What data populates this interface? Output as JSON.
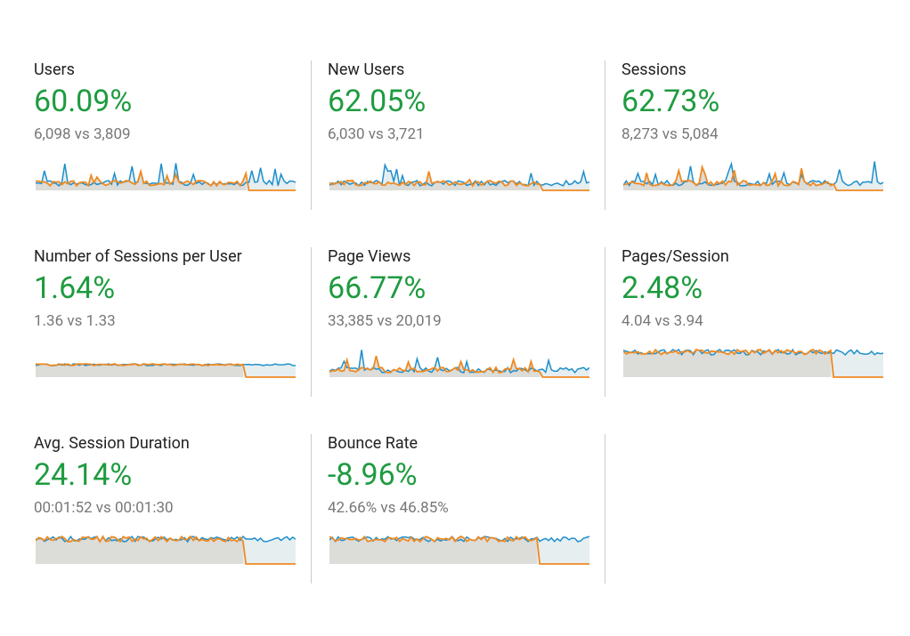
{
  "metrics": [
    {
      "title": "Users",
      "change": "60.09%",
      "comparison": "6,098 vs 3,809"
    },
    {
      "title": "New Users",
      "change": "62.05%",
      "comparison": "6,030 vs 3,721"
    },
    {
      "title": "Sessions",
      "change": "62.73%",
      "comparison": "8,273 vs 5,084"
    },
    {
      "title": "Number of Sessions per User",
      "change": "1.64%",
      "comparison": "1.36 vs 1.33"
    },
    {
      "title": "Page Views",
      "change": "66.77%",
      "comparison": "33,385 vs 20,019"
    },
    {
      "title": "Pages/Session",
      "change": "2.48%",
      "comparison": "4.04 vs 3.94"
    },
    {
      "title": "Avg. Session Duration",
      "change": "24.14%",
      "comparison": "00:01:52 vs 00:01:30"
    },
    {
      "title": "Bounce Rate",
      "change": "-8.96%",
      "comparison": "42.66% vs 46.85%"
    }
  ]
}
